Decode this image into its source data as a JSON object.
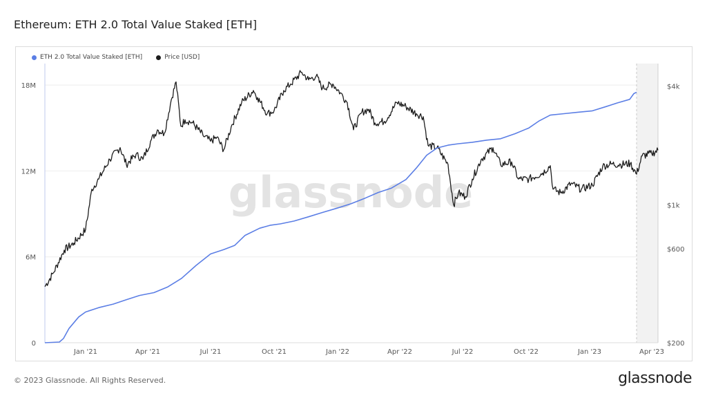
{
  "page": {
    "title": "Ethereum: ETH 2.0 Total Value Staked [ETH]",
    "copyright": "© 2023 Glassnode. All Rights Reserved.",
    "logo_text": "glassnode",
    "watermark": "glassnode"
  },
  "colors": {
    "staked": "#5b7ee5",
    "price": "#1c1c1c",
    "grid": "#eeeeee",
    "axis_text": "#555555"
  },
  "chart_data": {
    "type": "line",
    "title": "Ethereum: ETH 2.0 Total Value Staked [ETH]",
    "legend_position": "top-left",
    "grid": true,
    "x_ticks": [
      "Jan '21",
      "Apr '21",
      "Jul '21",
      "Oct '21",
      "Jan '22",
      "Apr '22",
      "Jul '22",
      "Oct '22",
      "Jan '23",
      "Apr '23"
    ],
    "x_tick_dates": [
      "2021-01-01",
      "2021-04-01",
      "2021-07-01",
      "2021-10-01",
      "2022-01-01",
      "2022-04-01",
      "2022-07-01",
      "2022-10-01",
      "2023-01-01",
      "2023-04-01"
    ],
    "xlim": [
      "2020-11-03",
      "2023-04-10"
    ],
    "left_axis": {
      "ticks": [
        0,
        6000000,
        12000000,
        18000000
      ],
      "tick_labels": [
        "0",
        "6M",
        "12M",
        "18M"
      ],
      "ylim": [
        0,
        19500000
      ]
    },
    "right_axis": {
      "scale": "log",
      "ticks": [
        200,
        600,
        1000,
        4000
      ],
      "tick_labels": [
        "$200",
        "$600",
        "$1k",
        "$4k"
      ],
      "ylim": [
        200,
        5200
      ]
    },
    "series": [
      {
        "name": "ETH 2.0 Total Value Staked [ETH]",
        "axis": "left",
        "x": [
          "2020-11-03",
          "2020-11-24",
          "2020-11-30",
          "2020-12-08",
          "2020-12-22",
          "2021-01-01",
          "2021-01-20",
          "2021-02-10",
          "2021-03-01",
          "2021-03-20",
          "2021-04-10",
          "2021-04-30",
          "2021-05-20",
          "2021-06-10",
          "2021-07-01",
          "2021-07-20",
          "2021-08-05",
          "2021-08-20",
          "2021-09-10",
          "2021-09-25",
          "2021-10-10",
          "2021-10-30",
          "2021-11-20",
          "2021-12-10",
          "2021-12-31",
          "2022-01-20",
          "2022-02-10",
          "2022-03-01",
          "2022-03-20",
          "2022-04-10",
          "2022-04-25",
          "2022-05-10",
          "2022-05-25",
          "2022-06-10",
          "2022-06-25",
          "2022-07-15",
          "2022-08-05",
          "2022-08-25",
          "2022-09-15",
          "2022-10-05",
          "2022-10-20",
          "2022-11-05",
          "2022-11-25",
          "2022-12-15",
          "2023-01-05",
          "2023-01-25",
          "2023-02-10",
          "2023-02-28",
          "2023-03-06",
          "2023-03-10"
        ],
        "values": [
          0,
          50000,
          300000,
          1000000,
          1800000,
          2150000,
          2450000,
          2700000,
          3000000,
          3300000,
          3500000,
          3900000,
          4500000,
          5400000,
          6200000,
          6500000,
          6800000,
          7500000,
          8000000,
          8200000,
          8300000,
          8500000,
          8800000,
          9100000,
          9400000,
          9700000,
          10100000,
          10500000,
          10800000,
          11400000,
          12200000,
          13100000,
          13600000,
          13800000,
          13900000,
          14000000,
          14150000,
          14250000,
          14600000,
          15000000,
          15500000,
          15900000,
          16000000,
          16100000,
          16200000,
          16500000,
          16750000,
          17000000,
          17400000,
          17500000
        ]
      },
      {
        "name": "Price [USD]",
        "axis": "right",
        "x": [
          "2020-11-03",
          "2020-11-15",
          "2020-12-01",
          "2020-12-15",
          "2021-01-01",
          "2021-01-10",
          "2021-01-20",
          "2021-02-05",
          "2021-02-20",
          "2021-03-01",
          "2021-03-15",
          "2021-03-25",
          "2021-04-05",
          "2021-04-15",
          "2021-04-25",
          "2021-05-05",
          "2021-05-12",
          "2021-05-19",
          "2021-05-25",
          "2021-06-05",
          "2021-06-20",
          "2021-07-01",
          "2021-07-10",
          "2021-07-20",
          "2021-08-01",
          "2021-08-15",
          "2021-09-01",
          "2021-09-07",
          "2021-09-21",
          "2021-10-01",
          "2021-10-15",
          "2021-10-25",
          "2021-11-10",
          "2021-11-20",
          "2021-12-01",
          "2021-12-10",
          "2021-12-25",
          "2022-01-05",
          "2022-01-15",
          "2022-01-24",
          "2022-02-05",
          "2022-02-15",
          "2022-02-24",
          "2022-03-10",
          "2022-03-28",
          "2022-04-10",
          "2022-04-25",
          "2022-05-05",
          "2022-05-12",
          "2022-05-25",
          "2022-06-10",
          "2022-06-18",
          "2022-06-25",
          "2022-07-05",
          "2022-07-15",
          "2022-07-28",
          "2022-08-14",
          "2022-08-25",
          "2022-09-10",
          "2022-09-20",
          "2022-10-05",
          "2022-10-25",
          "2022-11-05",
          "2022-11-09",
          "2022-11-20",
          "2022-12-05",
          "2022-12-20",
          "2023-01-05",
          "2023-01-20",
          "2023-02-01",
          "2023-02-15",
          "2023-03-01",
          "2023-03-10",
          "2023-03-18",
          "2023-04-01",
          "2023-04-10"
        ],
        "values": [
          385,
          450,
          590,
          640,
          750,
          1200,
          1350,
          1700,
          1950,
          1600,
          1800,
          1700,
          2100,
          2400,
          2300,
          3400,
          4200,
          2500,
          2700,
          2600,
          2250,
          2100,
          2200,
          1900,
          2550,
          3300,
          3800,
          3500,
          2900,
          3000,
          3800,
          4100,
          4700,
          4300,
          4500,
          3900,
          4100,
          3700,
          3300,
          2400,
          2950,
          3050,
          2600,
          2650,
          3300,
          3150,
          2900,
          2800,
          2000,
          1950,
          1600,
          1000,
          1150,
          1100,
          1350,
          1700,
          1950,
          1600,
          1650,
          1350,
          1350,
          1450,
          1580,
          1200,
          1150,
          1280,
          1200,
          1260,
          1570,
          1610,
          1600,
          1620,
          1430,
          1770,
          1820,
          1890
        ]
      }
    ]
  }
}
